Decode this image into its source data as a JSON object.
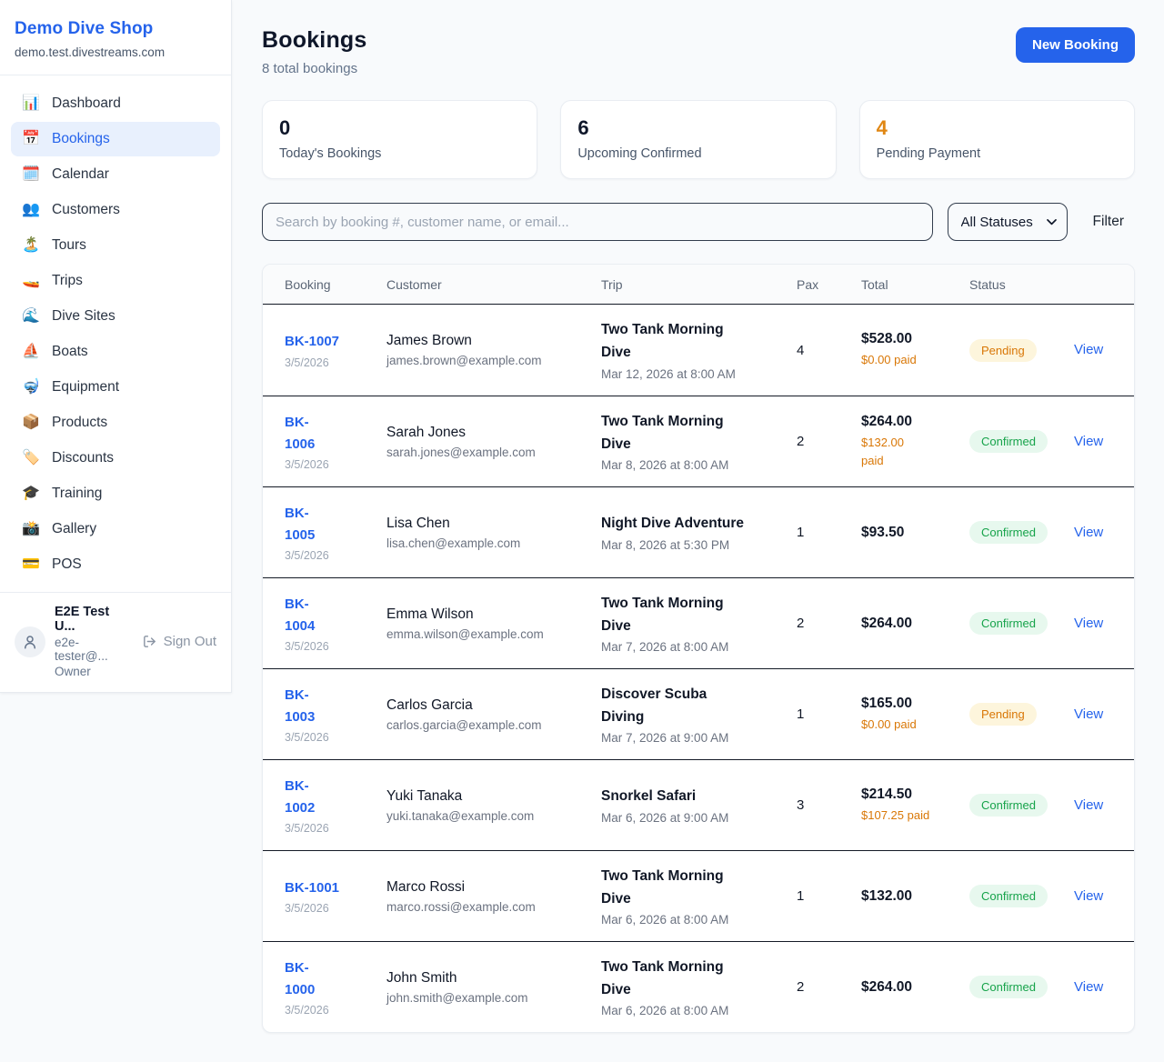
{
  "sidebar": {
    "brand": {
      "name": "Demo Dive Shop",
      "domain": "demo.test.divestreams.com"
    },
    "items": [
      {
        "label": "Dashboard",
        "icon": "dashboard-icon",
        "emoji": "📊",
        "active": false
      },
      {
        "label": "Bookings",
        "icon": "bookings-icon",
        "emoji": "📅",
        "active": true
      },
      {
        "label": "Calendar",
        "icon": "calendar-icon",
        "emoji": "🗓️",
        "active": false
      },
      {
        "label": "Customers",
        "icon": "customers-icon",
        "emoji": "👥",
        "active": false
      },
      {
        "label": "Tours",
        "icon": "tours-icon",
        "emoji": "🏝️",
        "active": false
      },
      {
        "label": "Trips",
        "icon": "trips-icon",
        "emoji": "🚤",
        "active": false
      },
      {
        "label": "Dive Sites",
        "icon": "dive-sites-icon",
        "emoji": "🌊",
        "active": false
      },
      {
        "label": "Boats",
        "icon": "boats-icon",
        "emoji": "⛵",
        "active": false
      },
      {
        "label": "Equipment",
        "icon": "equipment-icon",
        "emoji": "🤿",
        "active": false
      },
      {
        "label": "Products",
        "icon": "products-icon",
        "emoji": "📦",
        "active": false
      },
      {
        "label": "Discounts",
        "icon": "discounts-icon",
        "emoji": "🏷️",
        "active": false
      },
      {
        "label": "Training",
        "icon": "training-icon",
        "emoji": "🎓",
        "active": false
      },
      {
        "label": "Gallery",
        "icon": "gallery-icon",
        "emoji": "📸",
        "active": false
      },
      {
        "label": "POS",
        "icon": "pos-icon",
        "emoji": "💳",
        "active": false
      }
    ],
    "user": {
      "name": "E2E Test U...",
      "email": "e2e-tester@...",
      "role": "Owner",
      "sign_out_label": "Sign Out"
    }
  },
  "header": {
    "title": "Bookings",
    "subtitle": "8 total bookings",
    "new_booking_label": "New Booking"
  },
  "stats": [
    {
      "value": "0",
      "label": "Today's Bookings",
      "color": "#0f172a"
    },
    {
      "value": "6",
      "label": "Upcoming Confirmed",
      "color": "#0f172a"
    },
    {
      "value": "4",
      "label": "Pending Payment",
      "color": "#e08714"
    }
  ],
  "controls": {
    "search_placeholder": "Search by booking #, customer name, or email...",
    "status_filter_value": "All Statuses",
    "filter_label": "Filter"
  },
  "table": {
    "columns": [
      "Booking",
      "Customer",
      "Trip",
      "Pax",
      "Total",
      "Status"
    ],
    "rows": [
      {
        "number": "BK-1007",
        "number_wrap": [
          "BK-1007"
        ],
        "date": "3/5/2026",
        "customer": "James Brown",
        "email": "james.brown@example.com",
        "trip": "Two Tank Morning Dive",
        "trip_wrap": [
          "Two Tank Morning",
          "Dive"
        ],
        "trip_datetime": "Mar 12, 2026 at 8:00 AM",
        "pax": "4",
        "total": "$528.00",
        "paid": "$0.00 paid",
        "paid_wrap": [
          "$0.00 paid"
        ],
        "status": "Pending",
        "view_label": "View"
      },
      {
        "number": "BK-1006",
        "number_wrap": [
          "BK-",
          "1006"
        ],
        "date": "3/5/2026",
        "customer": "Sarah Jones",
        "email": "sarah.jones@example.com",
        "trip": "Two Tank Morning Dive",
        "trip_wrap": [
          "Two Tank Morning",
          "Dive"
        ],
        "trip_datetime": "Mar 8, 2026 at 8:00 AM",
        "pax": "2",
        "total": "$264.00",
        "paid": "$132.00 paid",
        "paid_wrap": [
          "$132.00",
          "paid"
        ],
        "status": "Confirmed",
        "view_label": "View"
      },
      {
        "number": "BK-1005",
        "number_wrap": [
          "BK-",
          "1005"
        ],
        "date": "3/5/2026",
        "customer": "Lisa Chen",
        "email": "lisa.chen@example.com",
        "trip": "Night Dive Adventure",
        "trip_wrap": [
          "Night Dive Adventure"
        ],
        "trip_datetime": "Mar 8, 2026 at 5:30 PM",
        "pax": "1",
        "total": "$93.50",
        "paid": null,
        "paid_wrap": null,
        "status": "Confirmed",
        "view_label": "View"
      },
      {
        "number": "BK-1004",
        "number_wrap": [
          "BK-",
          "1004"
        ],
        "date": "3/5/2026",
        "customer": "Emma Wilson",
        "email": "emma.wilson@example.com",
        "trip": "Two Tank Morning Dive",
        "trip_wrap": [
          "Two Tank Morning",
          "Dive"
        ],
        "trip_datetime": "Mar 7, 2026 at 8:00 AM",
        "pax": "2",
        "total": "$264.00",
        "paid": null,
        "paid_wrap": null,
        "status": "Confirmed",
        "view_label": "View"
      },
      {
        "number": "BK-1003",
        "number_wrap": [
          "BK-",
          "1003"
        ],
        "date": "3/5/2026",
        "customer": "Carlos Garcia",
        "email": "carlos.garcia@example.com",
        "trip": "Discover Scuba Diving",
        "trip_wrap": [
          "Discover Scuba",
          "Diving"
        ],
        "trip_datetime": "Mar 7, 2026 at 9:00 AM",
        "pax": "1",
        "total": "$165.00",
        "paid": "$0.00 paid",
        "paid_wrap": [
          "$0.00 paid"
        ],
        "status": "Pending",
        "view_label": "View"
      },
      {
        "number": "BK-1002",
        "number_wrap": [
          "BK-",
          "1002"
        ],
        "date": "3/5/2026",
        "customer": "Yuki Tanaka",
        "email": "yuki.tanaka@example.com",
        "trip": "Snorkel Safari",
        "trip_wrap": [
          "Snorkel Safari"
        ],
        "trip_datetime": "Mar 6, 2026 at 9:00 AM",
        "pax": "3",
        "total": "$214.50",
        "paid": "$107.25 paid",
        "paid_wrap": [
          "$107.25 paid"
        ],
        "status": "Confirmed",
        "view_label": "View"
      },
      {
        "number": "BK-1001",
        "number_wrap": [
          "BK-1001"
        ],
        "date": "3/5/2026",
        "customer": "Marco Rossi",
        "email": "marco.rossi@example.com",
        "trip": "Two Tank Morning Dive",
        "trip_wrap": [
          "Two Tank Morning",
          "Dive"
        ],
        "trip_datetime": "Mar 6, 2026 at 8:00 AM",
        "pax": "1",
        "total": "$132.00",
        "paid": null,
        "paid_wrap": null,
        "status": "Confirmed",
        "view_label": "View"
      },
      {
        "number": "BK-1000",
        "number_wrap": [
          "BK-",
          "1000"
        ],
        "date": "3/5/2026",
        "customer": "John Smith",
        "email": "john.smith@example.com",
        "trip": "Two Tank Morning Dive",
        "trip_wrap": [
          "Two Tank Morning",
          "Dive"
        ],
        "trip_datetime": "Mar 6, 2026 at 8:00 AM",
        "pax": "2",
        "total": "$264.00",
        "paid": null,
        "paid_wrap": null,
        "status": "Confirmed",
        "view_label": "View"
      }
    ]
  },
  "colors": {
    "accent": "#2563eb",
    "pending_text": "#d97706",
    "pending_bg": "#fdf5dc",
    "confirmed_text": "#16a34a",
    "confirmed_bg": "#e7f8ee",
    "alert_number": "#e08714"
  }
}
